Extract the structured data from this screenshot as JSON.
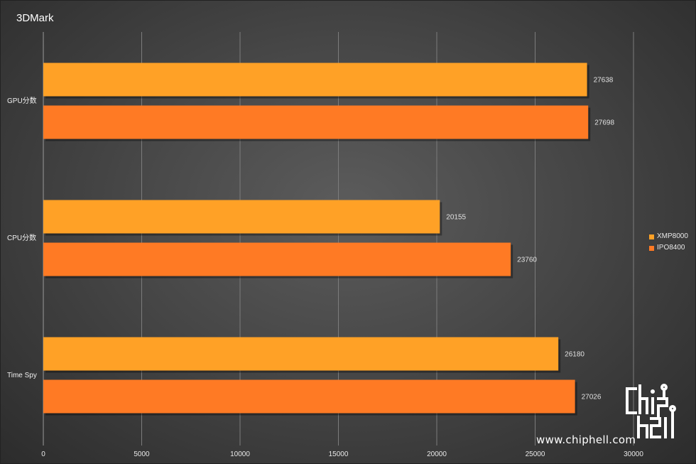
{
  "chart_data": {
    "type": "bar",
    "orientation": "horizontal",
    "title": "3DMark",
    "categories": [
      "GPU分数",
      "CPU分数",
      "Time Spy"
    ],
    "series": [
      {
        "name": "XMP8000",
        "color": "#ffa126",
        "values": [
          27638,
          20155,
          26180
        ]
      },
      {
        "name": "IPO8400",
        "color": "#ff7a24",
        "values": [
          27698,
          23760,
          27026
        ]
      }
    ],
    "xlim": [
      0,
      30000
    ],
    "xticks": [
      0,
      5000,
      10000,
      15000,
      20000,
      25000,
      30000
    ],
    "grid": true,
    "legend_position": "right"
  },
  "watermark": {
    "url": "www.chiphell.com",
    "logo_text": "chiphell"
  }
}
